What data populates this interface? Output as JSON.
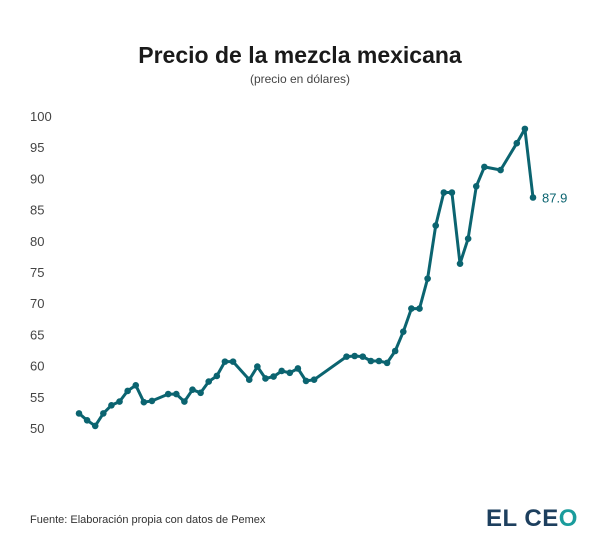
{
  "chart_data": {
    "type": "line",
    "title": "Precio de la mezcla mexicana",
    "subtitle": "(precio en dólares)",
    "xlabel": "",
    "ylabel": "",
    "ylim": [
      50,
      100
    ],
    "yticks": [
      100,
      95,
      90,
      85,
      80,
      75,
      70,
      65,
      60,
      55,
      50
    ],
    "grid": false,
    "color": "#0b6470",
    "x": [
      0,
      1,
      2,
      3,
      4,
      5,
      6,
      7,
      8,
      9,
      11,
      12,
      13,
      14,
      15,
      16,
      17,
      18,
      19,
      21,
      22,
      23,
      24,
      25,
      26,
      27,
      28,
      29,
      33,
      34,
      35,
      36,
      37,
      38,
      39,
      40,
      41,
      42,
      43,
      44,
      45,
      46,
      47,
      48,
      49,
      50,
      52,
      54,
      55,
      56
    ],
    "values": [
      53.3,
      52.2,
      51.3,
      53.3,
      54.6,
      55.2,
      56.9,
      57.8,
      55.1,
      55.3,
      56.4,
      56.4,
      55.2,
      57.1,
      56.6,
      58.4,
      59.3,
      61.6,
      61.6,
      58.7,
      60.8,
      58.9,
      59.2,
      60.1,
      59.8,
      60.5,
      58.5,
      58.7,
      62.4,
      62.5,
      62.4,
      61.7,
      61.7,
      61.4,
      63.3,
      66.4,
      70.1,
      70.1,
      74.9,
      83.4,
      88.7,
      88.7,
      77.3,
      81.3,
      89.7,
      92.8,
      92.3,
      96.6,
      98.9,
      87.9
    ],
    "last_label": "87.9"
  },
  "footer": {
    "source": "Fuente: Elaboración propia con datos de Pemex",
    "logo_text": "EL CEO"
  }
}
